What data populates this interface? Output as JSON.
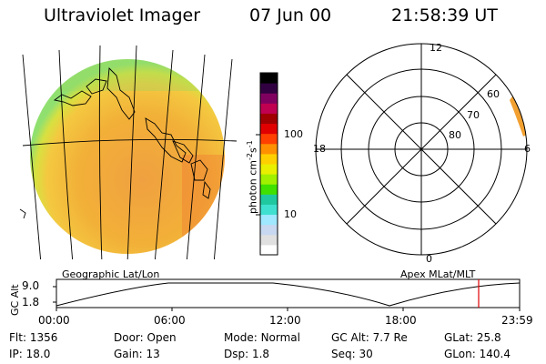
{
  "header": {
    "instrument": "Ultraviolet Imager",
    "date": "07 Jun 00",
    "time": "21:58:39 UT"
  },
  "colorbar": {
    "unit_label": "photon cm",
    "unit_sup1": "-2",
    "unit_mid": "s",
    "unit_sup2": "-1",
    "ticks": [
      "100",
      "10"
    ],
    "colors": [
      "#ffffff",
      "#e0e0e0",
      "#c8d8f0",
      "#a0e8ff",
      "#40e0d0",
      "#20c8a0",
      "#40e000",
      "#a0f000",
      "#e8f000",
      "#ffd000",
      "#ff9000",
      "#ff4000",
      "#e00000",
      "#a00000",
      "#c00050",
      "#800060",
      "#300040",
      "#000000"
    ]
  },
  "map_panel": {
    "projection_label": "Geographic Lat/Lon"
  },
  "polar_panel": {
    "label": "Apex MLat/MLT",
    "mlt_labels": [
      "12",
      "18",
      "6",
      "0"
    ],
    "lat_labels": [
      "60",
      "70",
      "80"
    ]
  },
  "timeline": {
    "ylabel": "GC Alt",
    "yticks": [
      "9.0",
      "1.8"
    ],
    "xticks": [
      "00:00",
      "06:00",
      "12:00",
      "18:00",
      "23:59"
    ]
  },
  "status": {
    "row1": [
      {
        "key": "Flt:",
        "value": "1356"
      },
      {
        "key": "Door:",
        "value": "Open"
      },
      {
        "key": "Mode:",
        "value": "Normal"
      },
      {
        "key": "GC Alt:",
        "value": "7.7 Re"
      },
      {
        "key": "GLat:",
        "value": "25.8"
      }
    ],
    "row2": [
      {
        "key": "IP:",
        "value": "18.0"
      },
      {
        "key": "Gain:",
        "value": "13"
      },
      {
        "key": "Dsp:",
        "value": "1.8"
      },
      {
        "key": "Seq:",
        "value": "30"
      },
      {
        "key": "GLon:",
        "value": "140.4"
      }
    ]
  },
  "colors": {
    "disk_bright": "#f0a030",
    "disk_mid": "#f4c040",
    "limb": "#a8e040",
    "marker": "#e00000"
  }
}
